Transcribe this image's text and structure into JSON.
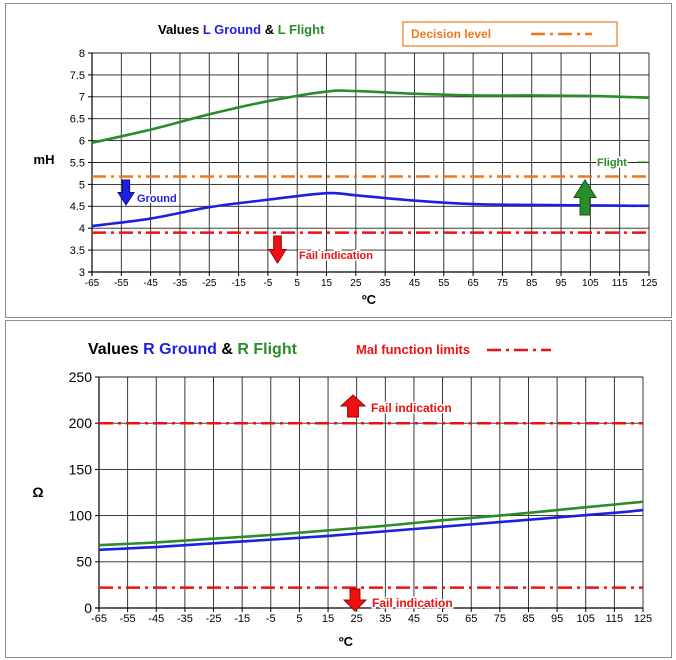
{
  "chart_data": [
    {
      "type": "line",
      "title_parts": [
        {
          "text": "Values ",
          "color": "#000000"
        },
        {
          "text": "L Ground",
          "color": "#1f1fe0"
        },
        {
          "text": " & ",
          "color": "#000000"
        },
        {
          "text": "L Flight",
          "color": "#2a8c2a"
        }
      ],
      "legend_label": "Decision level",
      "legend_color": "#f07820",
      "ylabel": "mH",
      "xlabel": "ºC",
      "x_ticks": [
        -65,
        -55,
        -45,
        -35,
        -25,
        -15,
        -5,
        5,
        15,
        25,
        35,
        45,
        55,
        65,
        75,
        85,
        95,
        105,
        115,
        125
      ],
      "y_ticks": [
        3,
        3.5,
        4,
        4.5,
        5,
        5.5,
        6,
        6.5,
        7,
        7.5,
        8
      ],
      "xlim": [
        -65,
        125
      ],
      "ylim": [
        3,
        8
      ],
      "grid": true,
      "series": [
        {
          "name": "L Flight",
          "color": "#2a8c2a",
          "x": [
            -65,
            -45,
            -25,
            -5,
            15,
            25,
            45,
            65,
            85,
            105,
            125
          ],
          "y": [
            5.95,
            6.25,
            6.6,
            6.9,
            7.12,
            7.13,
            7.07,
            7.03,
            7.03,
            7.02,
            6.98
          ]
        },
        {
          "name": "L Ground",
          "color": "#1f1fe0",
          "x": [
            -65,
            -45,
            -25,
            -5,
            15,
            25,
            45,
            65,
            85,
            105,
            125
          ],
          "y": [
            4.05,
            4.22,
            4.48,
            4.65,
            4.8,
            4.75,
            4.63,
            4.55,
            4.53,
            4.52,
            4.51
          ]
        }
      ],
      "reference_lines": [
        {
          "y": 5.18,
          "color": "#f07820"
        },
        {
          "y": 3.9,
          "color": "#ee1111"
        }
      ],
      "annotations": [
        {
          "text": "Ground",
          "color": "#1f1fe0",
          "arrow": "down"
        },
        {
          "text": "Fail indication",
          "color": "#ee1111",
          "arrow": "down"
        },
        {
          "text": "Flight",
          "color": "#2a8c2a",
          "arrow": "up"
        }
      ]
    },
    {
      "type": "line",
      "title_parts": [
        {
          "text": "Values ",
          "color": "#000000"
        },
        {
          "text": "R Ground",
          "color": "#1f1fe0"
        },
        {
          "text": " & ",
          "color": "#000000"
        },
        {
          "text": "R Flight",
          "color": "#2a8c2a"
        }
      ],
      "legend_label": "Mal function limits",
      "legend_color": "#ee1111",
      "ylabel": "Ω",
      "xlabel": "ºC",
      "x_ticks": [
        -65,
        -55,
        -45,
        -35,
        -25,
        -15,
        -5,
        5,
        15,
        25,
        35,
        45,
        55,
        65,
        75,
        85,
        95,
        105,
        115,
        125
      ],
      "y_ticks": [
        0,
        50,
        100,
        150,
        200,
        250
      ],
      "xlim": [
        -65,
        125
      ],
      "ylim": [
        0,
        250
      ],
      "grid": true,
      "series": [
        {
          "name": "R Flight",
          "color": "#2a8c2a",
          "x": [
            -65,
            -45,
            -25,
            -5,
            15,
            35,
            55,
            75,
            95,
            115,
            125
          ],
          "y": [
            68,
            71,
            75,
            79,
            84,
            89,
            95,
            100,
            106,
            112,
            115
          ]
        },
        {
          "name": "R Ground",
          "color": "#1f1fe0",
          "x": [
            -65,
            -45,
            -25,
            -5,
            15,
            35,
            55,
            75,
            95,
            115,
            125
          ],
          "y": [
            63,
            66,
            70,
            74,
            78,
            83,
            88,
            93,
            98,
            103,
            106
          ]
        }
      ],
      "reference_lines": [
        {
          "y": 200,
          "color": "#ee1111"
        },
        {
          "y": 22,
          "color": "#ee1111"
        }
      ],
      "annotations": [
        {
          "text": "Fail indication",
          "color": "#ee1111",
          "arrow": "up"
        },
        {
          "text": "Fail indication",
          "color": "#ee1111",
          "arrow": "down"
        }
      ]
    }
  ]
}
